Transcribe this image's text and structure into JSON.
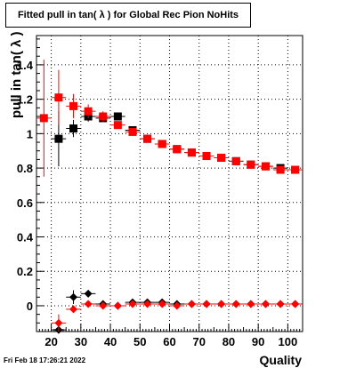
{
  "footer": {
    "timestamp": "Fri Feb 18 17:26:21 2022"
  },
  "chart_data": {
    "type": "scatter",
    "title": "Fitted pull in tan( λ ) for Global Rec Pion NoHits",
    "xlabel": "Quality",
    "ylabel": "pull in tan( λ )",
    "xlim": [
      15,
      105
    ],
    "ylim": [
      -0.15,
      1.57
    ],
    "x_ticks": [
      20,
      30,
      40,
      50,
      60,
      70,
      80,
      90,
      100
    ],
    "y_ticks": [
      0,
      0.2,
      0.4,
      0.6,
      0.8,
      1,
      1.2,
      1.4
    ],
    "grid": true,
    "colors": {
      "black": "#000000",
      "red": "#ff0000"
    },
    "series": [
      {
        "marker": "square",
        "color": "black",
        "x": [
          22.5,
          27.5,
          32.5,
          37.5,
          42.5,
          47.5,
          52.5,
          57.5,
          62.5,
          67.5,
          72.5,
          77.5,
          82.5,
          87.5,
          92.5,
          97.5,
          102.5
        ],
        "y": [
          0.97,
          1.03,
          1.1,
          1.09,
          1.1,
          1.02,
          0.97,
          0.94,
          0.91,
          0.89,
          0.87,
          0.86,
          0.84,
          0.82,
          0.81,
          0.8,
          0.79
        ],
        "yerr": [
          0.16,
          0.05,
          0.03,
          0.02,
          0.02,
          0.01,
          0.01,
          0.01,
          0.01,
          0.01,
          0.01,
          0.01,
          0.01,
          0.01,
          0.01,
          0.01,
          0.01
        ]
      },
      {
        "marker": "square",
        "color": "red",
        "x": [
          17.5,
          22.5,
          27.5,
          32.5,
          37.5,
          42.5,
          47.5,
          52.5,
          57.5,
          62.5,
          67.5,
          72.5,
          77.5,
          82.5,
          87.5,
          92.5,
          97.5,
          102.5
        ],
        "y": [
          1.09,
          1.21,
          1.16,
          1.13,
          1.1,
          1.05,
          1.01,
          0.97,
          0.94,
          0.91,
          0.89,
          0.87,
          0.86,
          0.84,
          0.82,
          0.81,
          0.79,
          0.79
        ],
        "yerr": [
          0.34,
          0.16,
          0.07,
          0.04,
          0.03,
          0.02,
          0.02,
          0.01,
          0.01,
          0.01,
          0.01,
          0.01,
          0.01,
          0.01,
          0.01,
          0.01,
          0.01,
          0.01
        ]
      },
      {
        "marker": "diamond",
        "color": "black",
        "x": [
          22.5,
          27.5,
          32.5,
          37.5,
          42.5,
          47.5,
          52.5,
          57.5,
          62.5,
          67.5,
          72.5,
          77.5,
          82.5,
          87.5,
          92.5,
          97.5,
          102.5
        ],
        "y": [
          -0.14,
          0.05,
          0.07,
          0.01,
          0.0,
          0.02,
          0.02,
          0.02,
          0.01,
          0.01,
          0.01,
          0.01,
          0.01,
          0.01,
          0.01,
          0.01,
          0.01
        ],
        "yerr": [
          0.02,
          0.04,
          0.02,
          0.01,
          0.01,
          0.01,
          0.01,
          0.01,
          0.005,
          0.005,
          0.005,
          0.005,
          0.005,
          0.005,
          0.005,
          0.005,
          0.005
        ]
      },
      {
        "marker": "diamond",
        "color": "red",
        "x": [
          22.5,
          27.5,
          32.5,
          37.5,
          42.5,
          47.5,
          52.5,
          57.5,
          62.5,
          67.5,
          72.5,
          77.5,
          82.5,
          87.5,
          92.5,
          97.5,
          102.5
        ],
        "y": [
          -0.1,
          -0.02,
          0.01,
          0.0,
          0.0,
          0.01,
          0.01,
          0.01,
          0.0,
          0.01,
          0.01,
          0.01,
          0.01,
          0.01,
          0.01,
          0.01,
          0.01
        ],
        "yerr": [
          0.05,
          0.02,
          0.01,
          0.01,
          0.01,
          0.005,
          0.005,
          0.005,
          0.005,
          0.005,
          0.005,
          0.005,
          0.005,
          0.005,
          0.005,
          0.005,
          0.005
        ]
      }
    ]
  }
}
